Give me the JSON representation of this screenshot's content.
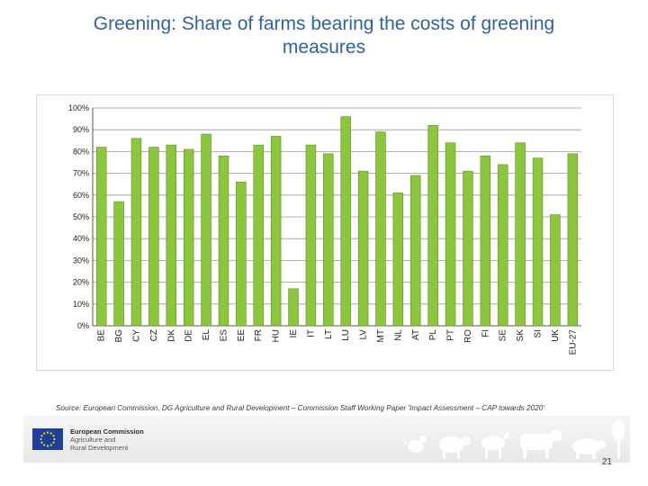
{
  "slide": {
    "title_line1": "Greening: Share of farms bearing the costs of greening",
    "title_line2": "measures",
    "source": "Source: European Commission, DG Agriculture and Rural Development – Commission Staff Working Paper 'Impact Assessment – CAP towards 2020'",
    "page_number": "21"
  },
  "footer": {
    "org_name": "European Commission",
    "dg_line1": "Agriculture and",
    "dg_line2": "Rural Development",
    "logo_icon": "eu-flag-icon",
    "decoration_icon": "farm-animals-silhouette-icon"
  },
  "colors": {
    "title": "#2f62a6",
    "bar": "#8cc63f",
    "bar_edge": "#5f8f1e",
    "grid": "#9a9a9a"
  },
  "chart_data": {
    "type": "bar",
    "title": "",
    "xlabel": "",
    "ylabel": "",
    "ylim": [
      0,
      100
    ],
    "y_ticks": [
      "0%",
      "10%",
      "20%",
      "30%",
      "40%",
      "50%",
      "60%",
      "70%",
      "80%",
      "90%",
      "100%"
    ],
    "grid": true,
    "categories": [
      "BE",
      "BG",
      "CY",
      "CZ",
      "DK",
      "DE",
      "EL",
      "ES",
      "EE",
      "FR",
      "HU",
      "IE",
      "IT",
      "LT",
      "LU",
      "LV",
      "MT",
      "NL",
      "AT",
      "PL",
      "PT",
      "RO",
      "FI",
      "SE",
      "SK",
      "SI",
      "UK",
      "EU-27"
    ],
    "values": [
      82,
      57,
      86,
      82,
      83,
      81,
      88,
      78,
      66,
      83,
      87,
      17,
      83,
      79,
      96,
      71,
      89,
      61,
      69,
      92,
      84,
      71,
      78,
      74,
      84,
      77,
      51,
      79
    ]
  }
}
